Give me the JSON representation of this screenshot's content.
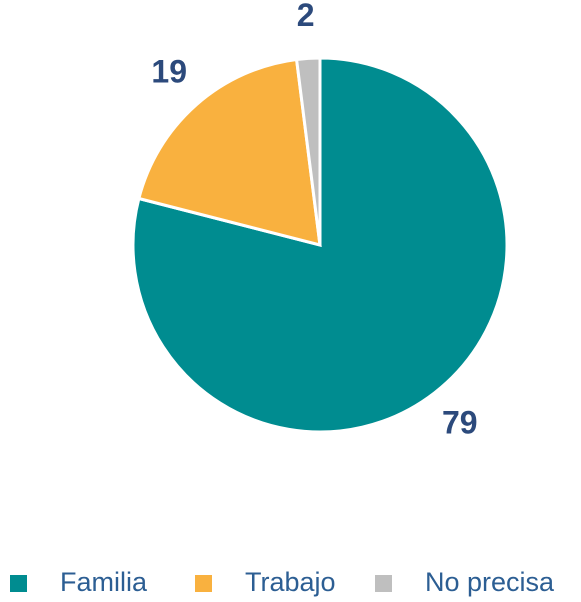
{
  "chart_data": {
    "type": "pie",
    "categories": [
      "Familia",
      "Trabajo",
      "No precisa"
    ],
    "values": [
      79,
      19,
      2
    ],
    "colors": [
      "#008c90",
      "#f9b13f",
      "#bfbfbf"
    ],
    "legend": "bottom"
  }
}
